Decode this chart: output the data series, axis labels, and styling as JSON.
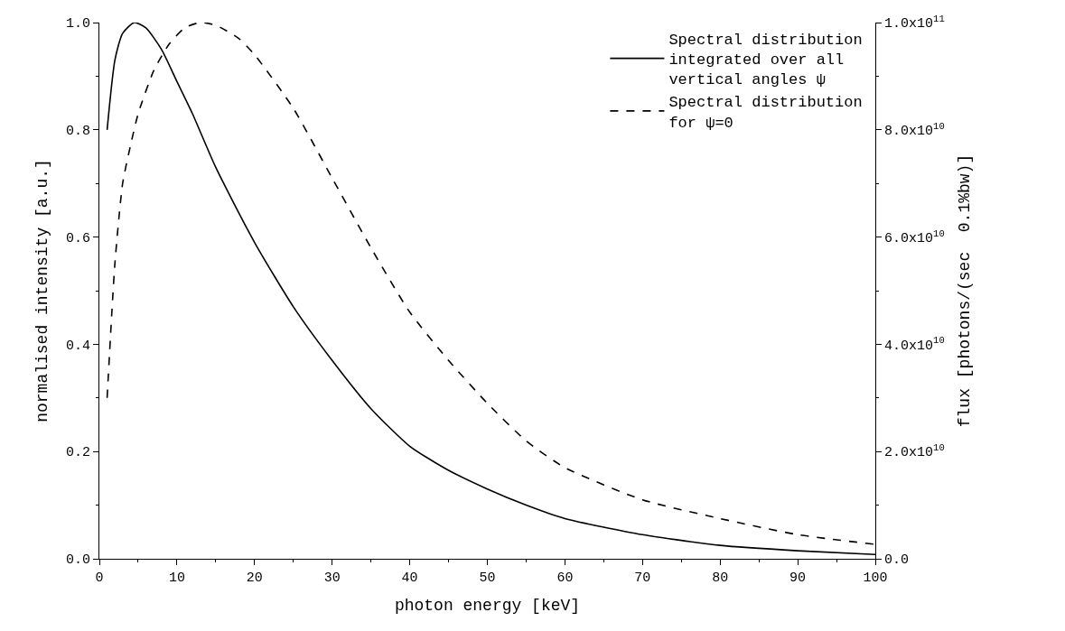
{
  "chart_data": {
    "type": "line",
    "xlabel": "photon energy [keV]",
    "ylabel": "normalised intensity [a.u.]",
    "y2label": "flux [photons/(sec  0.1%bw)]",
    "xlim": [
      0,
      100
    ],
    "xticks": [
      0,
      10,
      20,
      30,
      40,
      50,
      60,
      70,
      80,
      90,
      100
    ],
    "ylim": [
      0,
      1.0
    ],
    "yticks": [
      {
        "value": 0,
        "label": "0.0"
      },
      0.2,
      0.4,
      0.6,
      0.8,
      {
        "value": 1.0,
        "label": "1.0"
      }
    ],
    "y2lim": [
      0,
      100000000000.0
    ],
    "y2ticks": [
      {
        "value": 0,
        "label": "0.0"
      },
      {
        "value": 20000000000.0,
        "label": "2.0x10$^{10}$"
      },
      {
        "value": 40000000000.0,
        "label": "4.0x10$^{10}$"
      },
      {
        "value": 60000000000.0,
        "label": "6.0x10$^{10}$"
      },
      {
        "value": 80000000000.0,
        "label": "8.0x10$^{10}$"
      },
      {
        "value": 100000000000.0,
        "label": "1.0x10$^{11}$"
      }
    ],
    "legend": "top right",
    "marker": "none",
    "series": [
      {
        "name": "Spectral distribution\nintegrated over all\nvertical angles ψ",
        "color": "#000000",
        "line_style": "solid",
        "x": [
          1,
          2,
          3,
          4.5,
          6,
          8,
          10,
          12,
          15,
          20,
          25,
          30,
          35,
          40,
          45,
          50,
          55,
          60,
          70,
          80,
          90,
          100
        ],
        "values": [
          0.8,
          0.93,
          0.98,
          1.0,
          0.99,
          0.95,
          0.89,
          0.83,
          0.73,
          0.59,
          0.47,
          0.37,
          0.28,
          0.21,
          0.165,
          0.13,
          0.1,
          0.075,
          0.045,
          0.025,
          0.015,
          0.008
        ]
      },
      {
        "name": "Spectral distribution\nfor ψ=0",
        "color": "#000000",
        "line_style": "dashed",
        "x": [
          1,
          2,
          3,
          4,
          5,
          7,
          9,
          11,
          13,
          15,
          18,
          20,
          25,
          30,
          35,
          40,
          45,
          50,
          55,
          60,
          70,
          80,
          90,
          100
        ],
        "values": [
          0.3,
          0.55,
          0.7,
          0.77,
          0.83,
          0.91,
          0.96,
          0.99,
          1.0,
          0.995,
          0.97,
          0.94,
          0.84,
          0.71,
          0.58,
          0.46,
          0.37,
          0.29,
          0.22,
          0.17,
          0.11,
          0.075,
          0.045,
          0.027
        ]
      }
    ]
  }
}
